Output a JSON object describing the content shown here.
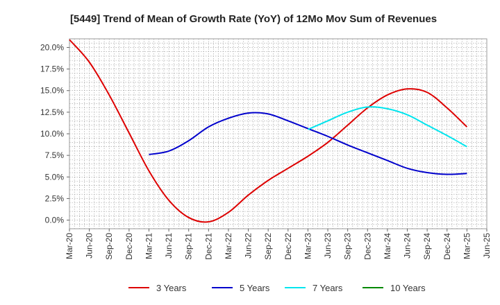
{
  "chart_data": {
    "type": "line",
    "title": "[5449]  Trend of Mean of Growth Rate (YoY) of 12Mo Mov Sum of Revenues",
    "xlabel": "",
    "ylabel": "",
    "x": [
      "Mar-20",
      "Jun-20",
      "Sep-20",
      "Dec-20",
      "Mar-21",
      "Jun-21",
      "Sep-21",
      "Dec-21",
      "Mar-22",
      "Jun-22",
      "Sep-22",
      "Dec-22",
      "Mar-23",
      "Jun-23",
      "Sep-23",
      "Dec-23",
      "Mar-24",
      "Jun-24",
      "Sep-24",
      "Dec-24",
      "Mar-25",
      "Jun-25"
    ],
    "y_ticks": [
      0.0,
      2.5,
      5.0,
      7.5,
      10.0,
      12.5,
      15.0,
      17.5,
      20.0
    ],
    "y_tick_labels": [
      "0.0%",
      "2.5%",
      "5.0%",
      "7.5%",
      "10.0%",
      "12.5%",
      "15.0%",
      "17.5%",
      "20.0%"
    ],
    "ylim": [
      -1.0,
      21.0
    ],
    "grid": true,
    "legend_position": "bottom",
    "series": [
      {
        "name": "3 Years",
        "color": "#dd0000",
        "values": [
          20.9,
          18.3,
          14.5,
          10.1,
          5.7,
          2.3,
          0.3,
          -0.2,
          0.9,
          2.9,
          4.6,
          6.0,
          7.4,
          9.0,
          11.0,
          13.0,
          14.5,
          15.2,
          14.8,
          13.0,
          10.8,
          null
        ]
      },
      {
        "name": "5 Years",
        "color": "#0000cc",
        "values": [
          null,
          null,
          null,
          null,
          7.6,
          8.0,
          9.2,
          10.8,
          11.8,
          12.4,
          12.3,
          11.5,
          10.6,
          9.7,
          8.7,
          7.8,
          6.9,
          6.0,
          5.5,
          5.3,
          5.4,
          null
        ]
      },
      {
        "name": "7 Years",
        "color": "#00e5ee",
        "values": [
          null,
          null,
          null,
          null,
          null,
          null,
          null,
          null,
          null,
          null,
          null,
          null,
          10.5,
          11.5,
          12.5,
          13.1,
          12.9,
          12.2,
          11.0,
          9.8,
          8.5,
          null
        ]
      },
      {
        "name": "10 Years",
        "color": "#008800",
        "values": [
          null,
          null,
          null,
          null,
          null,
          null,
          null,
          null,
          null,
          null,
          null,
          null,
          null,
          null,
          null,
          null,
          null,
          null,
          null,
          null,
          null,
          null
        ]
      }
    ]
  }
}
